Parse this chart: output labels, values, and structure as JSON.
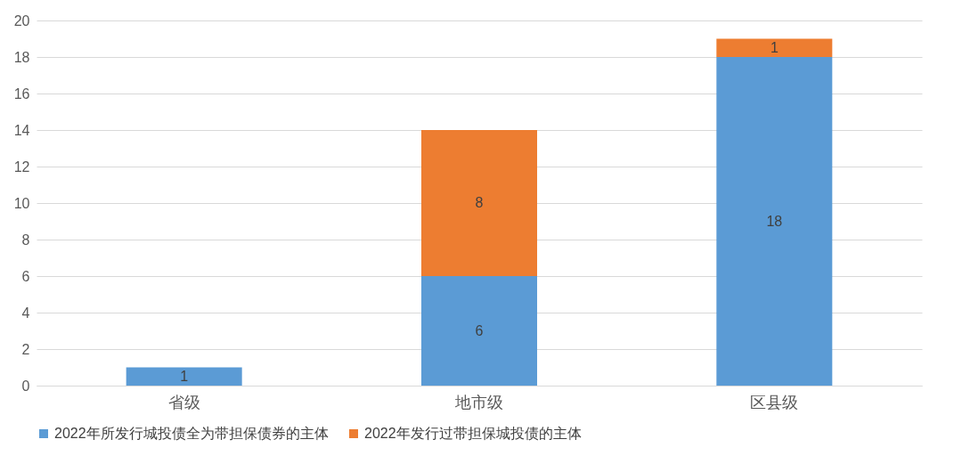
{
  "chart_data": {
    "type": "bar",
    "stacked": true,
    "categories": [
      "省级",
      "地市级",
      "区县级"
    ],
    "series": [
      {
        "name": "2022年所发行城投债全为带担保债券的主体",
        "color": "#5b9bd5",
        "values": [
          1,
          6,
          18
        ]
      },
      {
        "name": "2022年发行过带担保城投债的主体",
        "color": "#ed7d31",
        "values": [
          null,
          8,
          1
        ]
      }
    ],
    "ylim": [
      0,
      20
    ],
    "yticks": [
      0,
      2,
      4,
      6,
      8,
      10,
      12,
      14,
      16,
      18,
      20
    ],
    "grid": "y",
    "legend": "bottom",
    "data_labels": true
  }
}
